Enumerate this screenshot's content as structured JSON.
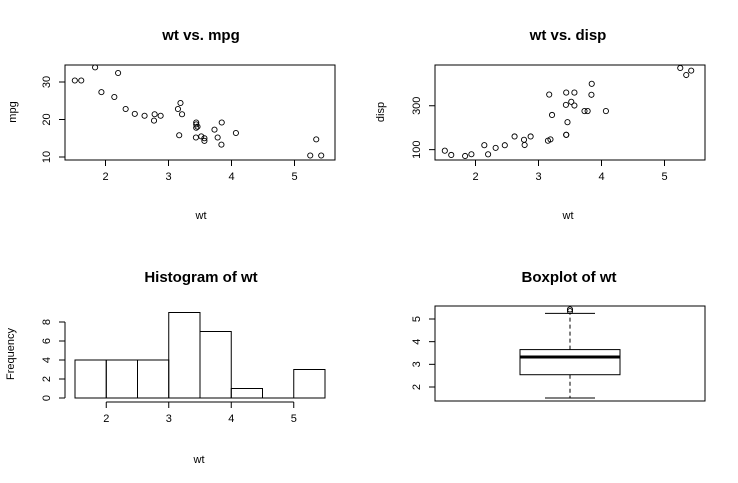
{
  "chart_data": [
    {
      "type": "scatter",
      "title": "wt vs. mpg",
      "xlabel": "wt",
      "ylabel": "mpg",
      "xlim": [
        1.5,
        5.5
      ],
      "ylim": [
        10,
        34
      ],
      "xticks": [
        2,
        3,
        4,
        5
      ],
      "yticks": [
        10,
        20,
        30
      ],
      "points": [
        [
          2.62,
          21.0
        ],
        [
          2.875,
          21.0
        ],
        [
          2.32,
          22.8
        ],
        [
          3.215,
          21.4
        ],
        [
          3.44,
          18.7
        ],
        [
          3.46,
          18.1
        ],
        [
          3.57,
          14.3
        ],
        [
          3.19,
          24.4
        ],
        [
          3.15,
          22.8
        ],
        [
          3.44,
          19.2
        ],
        [
          3.44,
          17.8
        ],
        [
          4.07,
          16.4
        ],
        [
          3.73,
          17.3
        ],
        [
          3.78,
          15.2
        ],
        [
          5.25,
          10.4
        ],
        [
          5.424,
          10.4
        ],
        [
          5.345,
          14.7
        ],
        [
          2.2,
          32.4
        ],
        [
          1.615,
          30.4
        ],
        [
          1.835,
          33.9
        ],
        [
          2.465,
          21.5
        ],
        [
          3.52,
          15.5
        ],
        [
          3.435,
          15.2
        ],
        [
          3.84,
          13.3
        ],
        [
          3.845,
          19.2
        ],
        [
          1.935,
          27.3
        ],
        [
          2.14,
          26.0
        ],
        [
          1.513,
          30.4
        ],
        [
          3.17,
          15.8
        ],
        [
          2.77,
          19.7
        ],
        [
          3.57,
          15.0
        ],
        [
          2.78,
          21.4
        ]
      ]
    },
    {
      "type": "scatter",
      "title": "wt vs. disp",
      "xlabel": "wt",
      "ylabel": "disp",
      "xlim": [
        1.5,
        5.5
      ],
      "ylim": [
        71,
        472
      ],
      "xticks": [
        2,
        3,
        4,
        5
      ],
      "yticks": [
        100,
        300
      ],
      "points": [
        [
          2.62,
          160
        ],
        [
          2.875,
          160
        ],
        [
          2.32,
          108
        ],
        [
          3.215,
          258
        ],
        [
          3.44,
          360
        ],
        [
          3.46,
          225
        ],
        [
          3.57,
          360
        ],
        [
          3.19,
          146.7
        ],
        [
          3.15,
          140.8
        ],
        [
          3.44,
          167.6
        ],
        [
          3.44,
          167.6
        ],
        [
          4.07,
          275.8
        ],
        [
          3.73,
          275.8
        ],
        [
          3.78,
          275.8
        ],
        [
          5.25,
          472
        ],
        [
          5.424,
          460
        ],
        [
          5.345,
          440
        ],
        [
          2.2,
          78.7
        ],
        [
          1.615,
          75.7
        ],
        [
          1.835,
          71.1
        ],
        [
          2.465,
          120.1
        ],
        [
          3.52,
          318
        ],
        [
          3.435,
          304
        ],
        [
          3.84,
          350
        ],
        [
          3.845,
          400
        ],
        [
          1.935,
          79
        ],
        [
          2.14,
          120.3
        ],
        [
          1.513,
          95.1
        ],
        [
          3.17,
          351
        ],
        [
          2.77,
          145
        ],
        [
          3.57,
          301
        ],
        [
          2.78,
          121
        ]
      ]
    },
    {
      "type": "bar",
      "title": "Histogram of wt",
      "xlabel": "wt",
      "ylabel": "Frequency",
      "xlim": [
        1.5,
        5.5
      ],
      "ylim": [
        0,
        9
      ],
      "xticks": [
        2,
        3,
        4,
        5
      ],
      "yticks": [
        0,
        2,
        4,
        6,
        8
      ],
      "bins": [
        [
          1.5,
          2.0
        ],
        [
          2.0,
          2.5
        ],
        [
          2.5,
          3.0
        ],
        [
          3.0,
          3.5
        ],
        [
          3.5,
          4.0
        ],
        [
          4.0,
          4.5
        ],
        [
          4.5,
          5.0
        ],
        [
          5.0,
          5.5
        ]
      ],
      "values": [
        4,
        4,
        4,
        9,
        7,
        1,
        0,
        3
      ]
    },
    {
      "type": "box",
      "title": "Boxplot of wt",
      "ylim": [
        1.4,
        5.55
      ],
      "yticks": [
        2,
        3,
        4,
        5
      ],
      "min": 1.513,
      "q1": 2.542,
      "median": 3.325,
      "q3": 3.65,
      "whisker_high": 5.25,
      "outliers": [
        5.345,
        5.424
      ]
    }
  ]
}
